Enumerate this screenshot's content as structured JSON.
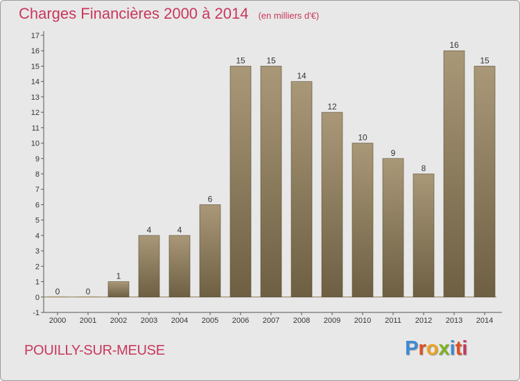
{
  "header": {
    "title": "Charges Financières 2000 à 2014",
    "unit": "(en milliers d'€)"
  },
  "footer": {
    "commune": "POUILLY-SUR-MEUSE",
    "logo": "Proxiti"
  },
  "colors": {
    "accent": "#c8375d",
    "bar_top": "#a99878",
    "bar_bottom": "#6e5f43",
    "background": "#e8e8e8",
    "logo_letters": [
      "#3d8ad6",
      "#e0501c",
      "#f0a11f",
      "#7fb320",
      "#3d8ad6",
      "#e0501c",
      "#c8375d"
    ]
  },
  "chart_data": {
    "type": "bar",
    "title": "Charges Financières 2000 à 2014",
    "subtitle": "(en milliers d'€)",
    "categories": [
      "2000",
      "2001",
      "2002",
      "2003",
      "2004",
      "2005",
      "2006",
      "2007",
      "2008",
      "2009",
      "2010",
      "2011",
      "2012",
      "2013",
      "2014"
    ],
    "values": [
      0,
      0,
      1,
      4,
      4,
      6,
      15,
      15,
      14,
      12,
      10,
      9,
      8,
      16,
      15
    ],
    "data_labels": [
      "0",
      "0",
      "1",
      "4",
      "4",
      "6",
      "15",
      "15",
      "14",
      "12",
      "10",
      "9",
      "8",
      "16",
      "15"
    ],
    "ylim": [
      -1,
      17
    ],
    "yticks": [
      -1,
      0,
      1,
      2,
      3,
      4,
      5,
      6,
      7,
      8,
      9,
      10,
      11,
      12,
      13,
      14,
      15,
      16,
      17
    ],
    "grid": false,
    "legend": "none"
  }
}
